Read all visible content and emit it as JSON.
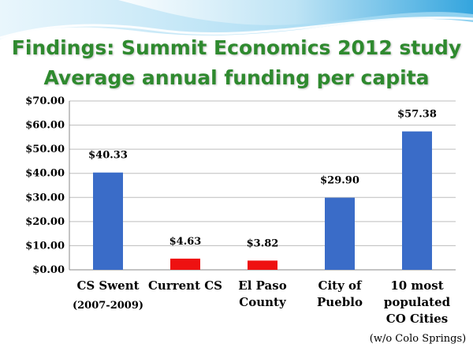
{
  "slide": {
    "title_line1": "Findings: Summit Economics 2012 study",
    "title_line2": "Average annual funding per capita",
    "footnote": "(w/o Colo Springs)"
  },
  "colors": {
    "title": "#2f8a2f",
    "bar_blue": "#3a6cc8",
    "bar_red": "#ee1111",
    "wave_light": "#bfe4f5",
    "wave_dark": "#2aa0dc"
  },
  "chart_data": {
    "type": "bar",
    "categories": [
      [
        "CS Swent"
      ],
      [
        "Current CS"
      ],
      [
        "El Paso",
        "County"
      ],
      [
        "City of",
        "Pueblo"
      ],
      [
        "10 most",
        "populated",
        "CO Cities"
      ]
    ],
    "category_subtitles": [
      "(2007-2009)",
      "",
      "",
      "",
      ""
    ],
    "values": [
      40.33,
      4.63,
      3.82,
      29.9,
      57.38
    ],
    "data_labels": [
      "$40.33",
      "$4.63",
      "$3.82",
      "$29.90",
      "$57.38"
    ],
    "bar_colors": [
      "#3a6cc8",
      "#ee1111",
      "#ee1111",
      "#3a6cc8",
      "#3a6cc8"
    ],
    "y_ticks": [
      "$0.00",
      "$10.00",
      "$20.00",
      "$30.00",
      "$40.00",
      "$50.00",
      "$60.00",
      "$70.00"
    ],
    "ylim": [
      0,
      70
    ],
    "grid": true,
    "legend": "none"
  }
}
